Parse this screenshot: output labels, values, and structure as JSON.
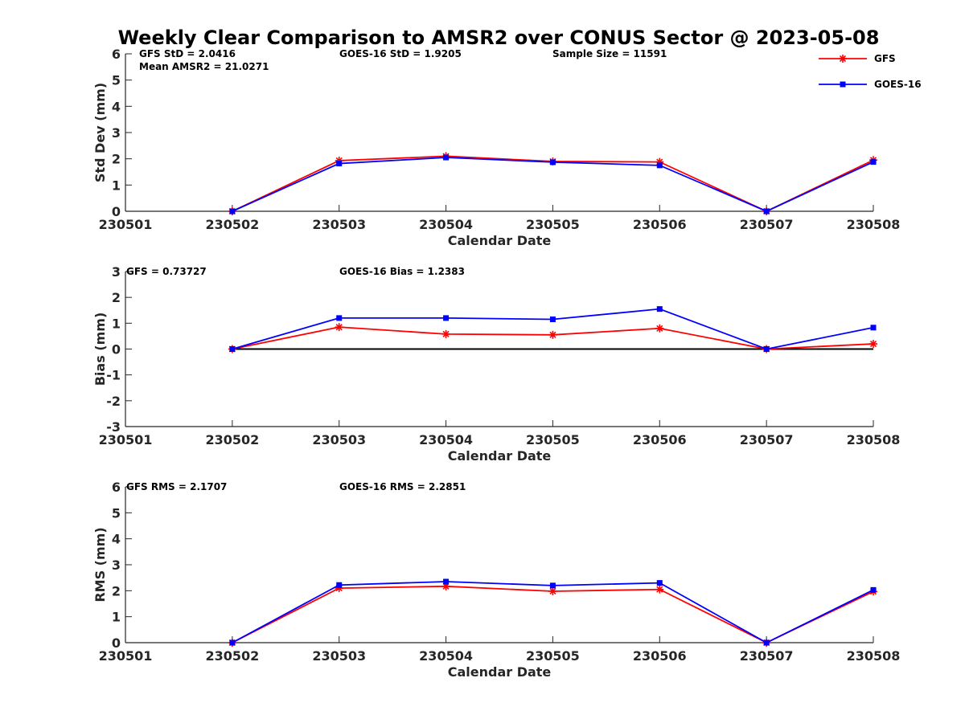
{
  "chart_data": {
    "type": "line",
    "title": "Weekly Clear Comparison to AMSR2 over CONUS Sector @ 2023-05-08",
    "legend": {
      "placement": "top-right",
      "entries": [
        {
          "name": "GFS",
          "color": "#ff0000",
          "marker": "asterisk"
        },
        {
          "name": "GOES-16",
          "color": "#0000ff",
          "marker": "square"
        }
      ]
    },
    "x_ticks": [
      "230501",
      "230502",
      "230503",
      "230504",
      "230505",
      "230506",
      "230507",
      "230508"
    ],
    "panels": [
      {
        "id": "std",
        "ylabel": "Std Dev (mm)",
        "xlabel": "Calendar Date",
        "ylim": [
          0,
          6
        ],
        "yticks": [
          0,
          1,
          2,
          3,
          4,
          5,
          6
        ],
        "annotations": [
          {
            "text": "GFS StD = 2.0416"
          },
          {
            "text": "Mean AMSR2 = 21.0271"
          },
          {
            "text": "GOES-16 StD = 1.9205"
          },
          {
            "text": "Sample Size = 11591"
          }
        ],
        "zero_line": false,
        "series": [
          {
            "name": "GFS",
            "x": [
              "230502",
              "230503",
              "230504",
              "230505",
              "230506",
              "230507",
              "230508"
            ],
            "values": [
              0.0,
              1.93,
              2.1,
              1.9,
              1.88,
              0.0,
              1.95
            ]
          },
          {
            "name": "GOES-16",
            "x": [
              "230502",
              "230503",
              "230504",
              "230505",
              "230506",
              "230507",
              "230508"
            ],
            "values": [
              0.0,
              1.82,
              2.05,
              1.87,
              1.75,
              0.0,
              1.88
            ]
          }
        ]
      },
      {
        "id": "bias",
        "ylabel": "Bias (mm)",
        "xlabel": "Calendar Date",
        "ylim": [
          -3,
          3
        ],
        "yticks": [
          -3,
          -2,
          -1,
          0,
          1,
          2,
          3
        ],
        "annotations": [
          {
            "text": "GFS = 0.73727"
          },
          {
            "text": "GOES-16 Bias  = 1.2383"
          }
        ],
        "zero_line": true,
        "series": [
          {
            "name": "GFS",
            "x": [
              "230502",
              "230503",
              "230504",
              "230505",
              "230506",
              "230507",
              "230508"
            ],
            "values": [
              0.0,
              0.85,
              0.58,
              0.55,
              0.8,
              0.0,
              0.2
            ]
          },
          {
            "name": "GOES-16",
            "x": [
              "230502",
              "230503",
              "230504",
              "230505",
              "230506",
              "230507",
              "230508"
            ],
            "values": [
              0.0,
              1.2,
              1.2,
              1.15,
              1.55,
              0.0,
              0.83
            ]
          }
        ]
      },
      {
        "id": "rms",
        "ylabel": "RMS (mm)",
        "xlabel": "Calendar Date",
        "ylim": [
          0,
          6
        ],
        "yticks": [
          0,
          1,
          2,
          3,
          4,
          5,
          6
        ],
        "annotations": [
          {
            "text": "GFS RMS = 2.1707"
          },
          {
            "text": "GOES-16 RMS = 2.2851"
          }
        ],
        "zero_line": false,
        "series": [
          {
            "name": "GFS",
            "x": [
              "230502",
              "230503",
              "230504",
              "230505",
              "230506",
              "230507",
              "230508"
            ],
            "values": [
              0.0,
              2.1,
              2.17,
              1.98,
              2.05,
              0.0,
              1.97
            ]
          },
          {
            "name": "GOES-16",
            "x": [
              "230502",
              "230503",
              "230504",
              "230505",
              "230506",
              "230507",
              "230508"
            ],
            "values": [
              0.0,
              2.22,
              2.35,
              2.2,
              2.3,
              0.0,
              2.03
            ]
          }
        ]
      }
    ]
  }
}
